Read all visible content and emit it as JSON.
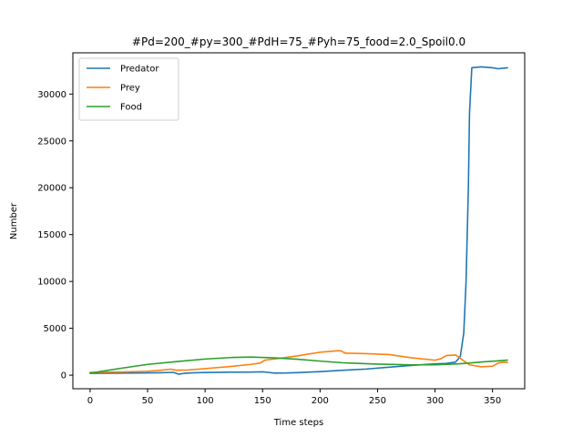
{
  "chart_data": {
    "type": "line",
    "title": "#Pd=200_#py=300_#PdH=75_#Pyh=75_food=2.0_Spoil0.0",
    "xlabel": "Time steps",
    "ylabel": "Number",
    "xlim": [
      -15,
      378
    ],
    "ylim": [
      -1450,
      34400
    ],
    "xticks": [
      0,
      50,
      100,
      150,
      200,
      250,
      300,
      350
    ],
    "yticks": [
      0,
      5000,
      10000,
      15000,
      20000,
      25000,
      30000
    ],
    "grid": false,
    "legend": "upper left",
    "series": [
      {
        "name": "Predator",
        "color": "#1f77b4",
        "points": [
          [
            0,
            200
          ],
          [
            20,
            210
          ],
          [
            40,
            230
          ],
          [
            60,
            260
          ],
          [
            72,
            300
          ],
          [
            74,
            240
          ],
          [
            77,
            100
          ],
          [
            82,
            200
          ],
          [
            90,
            260
          ],
          [
            100,
            280
          ],
          [
            120,
            320
          ],
          [
            140,
            330
          ],
          [
            150,
            350
          ],
          [
            155,
            300
          ],
          [
            160,
            220
          ],
          [
            170,
            230
          ],
          [
            180,
            270
          ],
          [
            200,
            380
          ],
          [
            220,
            520
          ],
          [
            240,
            650
          ],
          [
            260,
            850
          ],
          [
            280,
            1050
          ],
          [
            300,
            1200
          ],
          [
            310,
            1250
          ],
          [
            318,
            1400
          ],
          [
            322,
            2000
          ],
          [
            325,
            4500
          ],
          [
            327,
            10000
          ],
          [
            329,
            20000
          ],
          [
            330,
            28000
          ],
          [
            332,
            32800
          ],
          [
            340,
            32900
          ],
          [
            350,
            32800
          ],
          [
            355,
            32700
          ],
          [
            363,
            32800
          ]
        ]
      },
      {
        "name": "Prey",
        "color": "#ff7f0e",
        "points": [
          [
            0,
            300
          ],
          [
            25,
            330
          ],
          [
            50,
            420
          ],
          [
            60,
            500
          ],
          [
            70,
            640
          ],
          [
            75,
            520
          ],
          [
            85,
            550
          ],
          [
            100,
            700
          ],
          [
            120,
            900
          ],
          [
            140,
            1150
          ],
          [
            148,
            1300
          ],
          [
            152,
            1600
          ],
          [
            165,
            1800
          ],
          [
            180,
            2050
          ],
          [
            200,
            2450
          ],
          [
            215,
            2600
          ],
          [
            218,
            2600
          ],
          [
            222,
            2350
          ],
          [
            240,
            2300
          ],
          [
            260,
            2200
          ],
          [
            280,
            1850
          ],
          [
            300,
            1600
          ],
          [
            305,
            1750
          ],
          [
            310,
            2100
          ],
          [
            318,
            2150
          ],
          [
            322,
            1800
          ],
          [
            330,
            1100
          ],
          [
            340,
            900
          ],
          [
            350,
            950
          ],
          [
            355,
            1300
          ],
          [
            360,
            1400
          ],
          [
            363,
            1350
          ]
        ]
      },
      {
        "name": "Food",
        "color": "#2ca02c",
        "points": [
          [
            0,
            220
          ],
          [
            25,
            700
          ],
          [
            50,
            1150
          ],
          [
            75,
            1450
          ],
          [
            100,
            1720
          ],
          [
            125,
            1900
          ],
          [
            140,
            1930
          ],
          [
            160,
            1850
          ],
          [
            180,
            1700
          ],
          [
            200,
            1500
          ],
          [
            220,
            1320
          ],
          [
            250,
            1180
          ],
          [
            280,
            1100
          ],
          [
            300,
            1100
          ],
          [
            320,
            1200
          ],
          [
            340,
            1400
          ],
          [
            363,
            1600
          ]
        ]
      }
    ]
  }
}
